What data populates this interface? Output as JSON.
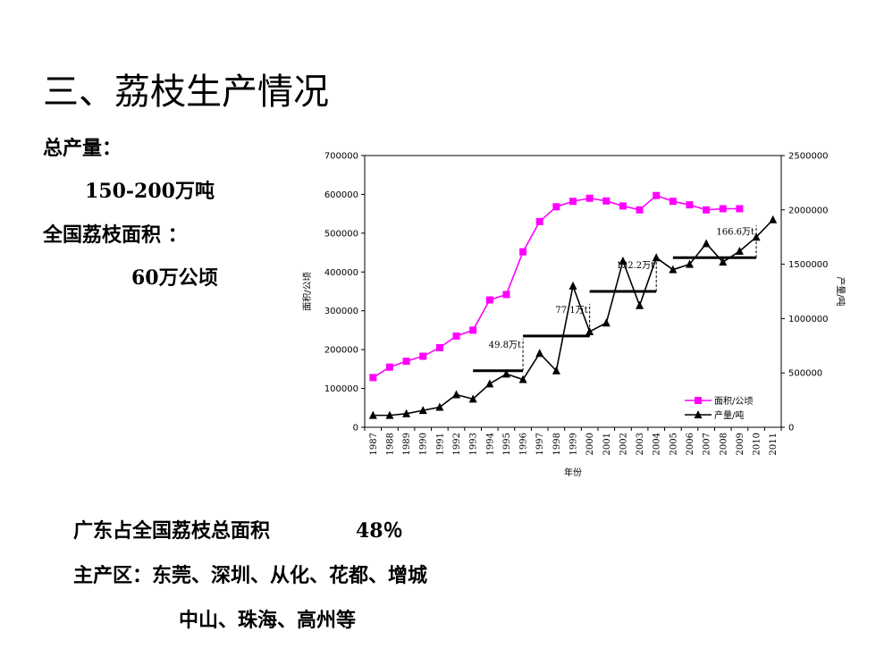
{
  "slide": {
    "title": "三、荔枝生产情况",
    "total_label": "总产量：",
    "total_value": "150-200万吨",
    "area_label": "全国荔枝面积 ：",
    "area_value": "60万公顷",
    "guangdong": "广东占全国荔枝总面积",
    "guangdong_pct": "48％",
    "regions_1": "主产区：东莞、深圳、从化、花都、增城",
    "regions_2": "中山、珠海、高州等"
  },
  "chart_data": {
    "type": "line",
    "xlabel": "年份",
    "ylabel_left": "面积/公顷",
    "ylabel_right": "产量/吨",
    "ylim_left": [
      0,
      700000
    ],
    "ylim_right": [
      0,
      2500000
    ],
    "yticks_left": [
      "0",
      "100000",
      "200000",
      "300000",
      "400000",
      "500000",
      "600000",
      "700000"
    ],
    "yticks_right": [
      "0",
      "500000",
      "1000000",
      "1500000",
      "2000000",
      "2500000"
    ],
    "x": [
      "1987",
      "1988",
      "1989",
      "1990",
      "1991",
      "1992",
      "1993",
      "1994",
      "1995",
      "1996",
      "1997",
      "1998",
      "1999",
      "2000",
      "2001",
      "2002",
      "2003",
      "2004",
      "2005",
      "2006",
      "2007",
      "2008",
      "2009",
      "2010",
      "2011"
    ],
    "legend_position": "bottom-right",
    "series": [
      {
        "name": "面积/公顷",
        "axis": "left",
        "color": "#ff00ff",
        "marker": "square",
        "values": [
          128000,
          155000,
          170000,
          183000,
          205000,
          235000,
          250000,
          328000,
          342000,
          452000,
          530000,
          568000,
          582000,
          590000,
          583000,
          570000,
          560000,
          597000,
          582000,
          573000,
          560000,
          563000,
          563000,
          null,
          null
        ]
      },
      {
        "name": "产量/吨",
        "axis": "right",
        "color": "#000000",
        "marker": "triangle",
        "values": [
          110000,
          110000,
          125000,
          155000,
          185000,
          300000,
          260000,
          400000,
          490000,
          440000,
          680000,
          520000,
          1300000,
          880000,
          960000,
          1530000,
          1120000,
          1560000,
          1450000,
          1500000,
          1690000,
          1520000,
          1620000,
          1750000,
          1910000
        ]
      }
    ],
    "annotations": [
      {
        "label": "49.8万t",
        "from": "1993",
        "to": "1996",
        "value": 520000
      },
      {
        "label": "77.1万t",
        "from": "1996",
        "to": "2000",
        "value": 840000
      },
      {
        "label": "132.2万t",
        "from": "2000",
        "to": "2004",
        "value": 1250000
      },
      {
        "label": "166.6万t",
        "from": "2005",
        "to": "2010",
        "value": 1560000
      }
    ]
  }
}
